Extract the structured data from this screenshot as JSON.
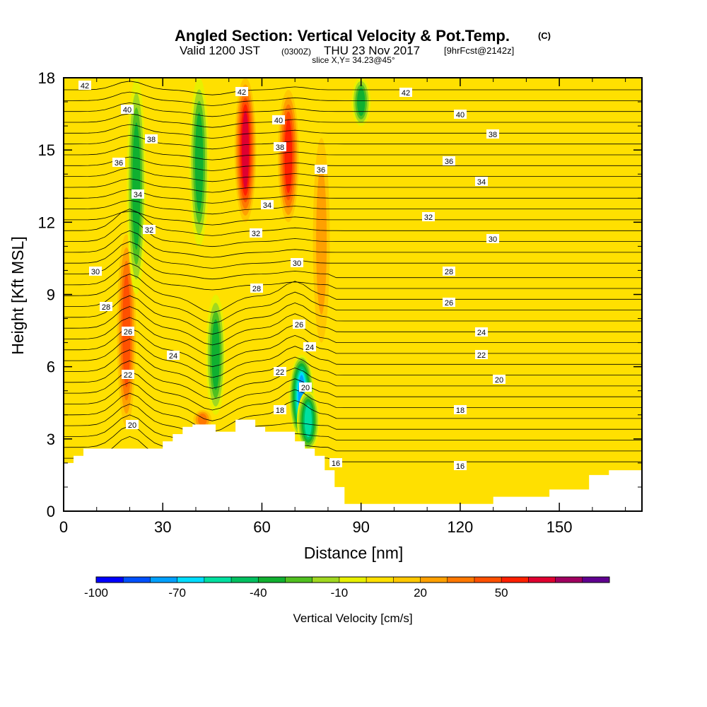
{
  "header": {
    "title": "Angled Section: Vertical Velocity & Pot.Temp.",
    "title_unit": "(C)",
    "valid_prefix": "Valid 1200 JST",
    "valid_utc": "(0300Z)",
    "valid_date": "THU 23 Nov 2017",
    "forecast_tag": "[9hrFcst@2142z]",
    "slice": "slice X,Y= 34.23@45°"
  },
  "chart_data": {
    "type": "heatmap",
    "xlabel": "Distance [nm]",
    "ylabel": "Height [Kft MSL]",
    "xlim": [
      0,
      175
    ],
    "ylim": [
      0,
      18
    ],
    "xticks": [
      0,
      30,
      60,
      90,
      120,
      150
    ],
    "yticks": [
      0,
      3,
      6,
      9,
      12,
      15,
      18
    ],
    "terrain_height_kft": [
      [
        0,
        2.0
      ],
      [
        3,
        2.0
      ],
      [
        3,
        2.3
      ],
      [
        6,
        2.3
      ],
      [
        6,
        2.6
      ],
      [
        30,
        2.6
      ],
      [
        30,
        2.9
      ],
      [
        33,
        2.9
      ],
      [
        33,
        3.2
      ],
      [
        36,
        3.2
      ],
      [
        36,
        3.5
      ],
      [
        39,
        3.5
      ],
      [
        39,
        3.6
      ],
      [
        46,
        3.6
      ],
      [
        46,
        3.3
      ],
      [
        52,
        3.3
      ],
      [
        52,
        3.8
      ],
      [
        58,
        3.8
      ],
      [
        58,
        3.5
      ],
      [
        61,
        3.5
      ],
      [
        61,
        3.3
      ],
      [
        70,
        3.3
      ],
      [
        70,
        2.9
      ],
      [
        73,
        2.9
      ],
      [
        73,
        2.6
      ],
      [
        76,
        2.6
      ],
      [
        76,
        2.3
      ],
      [
        79,
        2.3
      ],
      [
        79,
        1.7
      ],
      [
        82,
        1.7
      ],
      [
        82,
        1.0
      ],
      [
        85,
        1.0
      ],
      [
        85,
        0.3
      ],
      [
        130,
        0.3
      ],
      [
        130,
        0.6
      ],
      [
        147,
        0.6
      ],
      [
        147,
        0.9
      ],
      [
        159,
        0.9
      ],
      [
        159,
        1.5
      ],
      [
        165,
        1.5
      ],
      [
        165,
        1.7
      ],
      [
        175,
        1.7
      ]
    ],
    "vertical_velocity_cms": [
      {
        "x": 19,
        "z0": 3.5,
        "z1": 11.5,
        "value": 35
      },
      {
        "x": 22,
        "z0": 9.0,
        "z1": 18.0,
        "value": -35
      },
      {
        "x": 41,
        "z0": 11.0,
        "z1": 18.0,
        "value": -40
      },
      {
        "x": 46,
        "z0": 4.0,
        "z1": 9.0,
        "value": -40
      },
      {
        "x": 55,
        "z0": 12.0,
        "z1": 18.0,
        "value": 55
      },
      {
        "x": 68,
        "z0": 12.0,
        "z1": 17.5,
        "value": 50
      },
      {
        "x": 72,
        "z0": 3.0,
        "z1": 6.5,
        "value": -80
      },
      {
        "x": 74,
        "z0": 2.5,
        "z1": 5.0,
        "value": -60
      },
      {
        "x": 78,
        "z0": 7.0,
        "z1": 15.5,
        "value": 20
      },
      {
        "x": 90,
        "z0": 16.0,
        "z1": 18.0,
        "value": -35
      },
      {
        "x": 42,
        "z0": 3.4,
        "z1": 4.2,
        "value": 30
      }
    ],
    "pot_temp_contour_labels": [
      "42",
      "40",
      "38",
      "36",
      "34",
      "32",
      "30",
      "28",
      "26",
      "24",
      "22",
      "20",
      "18",
      "16"
    ],
    "colorbar": {
      "label": "Vertical Velocity [cm/s]",
      "tick_labels": [
        "-100",
        "-70",
        "-40",
        "-10",
        "20",
        "50"
      ],
      "colors": [
        "#0000ff",
        "#0050ff",
        "#00a0ff",
        "#00ddff",
        "#00e0a0",
        "#00c060",
        "#10b030",
        "#50c020",
        "#a0d820",
        "#e8f000",
        "#ffe000",
        "#ffc800",
        "#ffa000",
        "#ff7800",
        "#ff5000",
        "#ff2000",
        "#e00030",
        "#a00060",
        "#600090"
      ]
    }
  }
}
